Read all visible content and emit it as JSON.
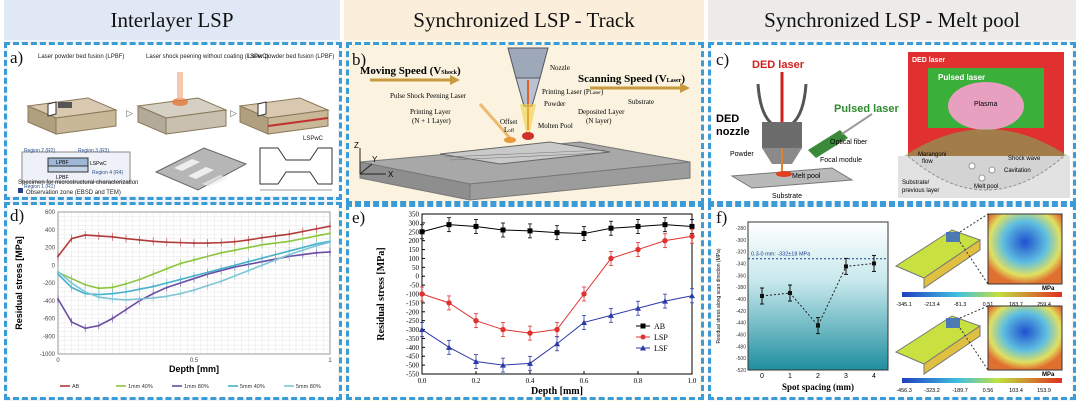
{
  "headers": {
    "col1": "Interlayer LSP",
    "col2": "Synchronized LSP - Track",
    "col3": "Synchronized LSP - Melt pool"
  },
  "panel_a": {
    "letter": "a)",
    "step1": "Laser powder bed fusion (LPBF)",
    "step2": "Laser shock peening without coating (LSPwC)",
    "step3": "Laser powder bed fusion (LPBF)",
    "lspwc_tag": "LSPwC",
    "regions": [
      "Region 2 (R2)",
      "Region 3 (R3)",
      "Region 1 (R1)",
      "Region 4 (R4)"
    ],
    "layers": [
      "LPBF",
      "LSPwC",
      "LPBF"
    ],
    "specimen_caption": "Specimen for microstructural characterization",
    "observation": "Observation zone (EBSD and TEM)"
  },
  "panel_b": {
    "letter": "b)",
    "moving_speed": "Moving Speed (V",
    "moving_sub": "Shock",
    "scanning_speed": "Scanning Speed (V",
    "scanning_sub": "Laser",
    "labels": {
      "nozzle": "Nozzle",
      "printing_laser": "Printing Laser (P",
      "printing_laser_sub": "Laser",
      "powder": "Powder",
      "pulse_laser": "Pulse Shock Peening Laser",
      "printing_layer": "Printing Layer",
      "printing_layer2": "(N + 1 Layer)",
      "offset": "Offset",
      "offset_sym": "L",
      "offset_sub": "off",
      "molten_pool": "Molten Pool",
      "deposited_layer": "Deposited Layer",
      "deposited_layer2": "(N layer)",
      "substrate": "Substrate",
      "axis_x": "X",
      "axis_y": "Y",
      "axis_z": "Z"
    }
  },
  "panel_c": {
    "letter": "c)",
    "ded_laser": "DED laser",
    "ded_nozzle1": "DED",
    "ded_nozzle2": "nozzle",
    "pulsed_laser": "Pulsed laser",
    "optical_fiber": "Optical fiber",
    "powder": "Powder",
    "focal_module": "Focal module",
    "melt_pool": "Melt pool",
    "substrate": "Substrate",
    "right": {
      "ded_laser": "DED laser",
      "pulsed_laser": "Pulsed laser",
      "plasma": "Plasma",
      "marangoni1": "Marangoni",
      "marangoni2": "flow",
      "shock_wave": "Shock wave",
      "cavitation": "Cavitation",
      "melt_pool": "Melt pool",
      "substrate1": "Substrate/",
      "substrate2": "previous layer"
    }
  },
  "panel_d": {
    "letter": "d)",
    "chart_data": {
      "type": "line",
      "xlabel": "Depth [mm]",
      "ylabel": "Residual stress [MPa]",
      "xlim": [
        0,
        1
      ],
      "ylim": [
        -1000,
        600
      ],
      "xticks": [
        "0",
        "0.5",
        "1"
      ],
      "yticks": [
        "600",
        "400",
        "200",
        "0",
        "-200",
        "-400",
        "-600",
        "-800",
        "-1000"
      ],
      "grid": true,
      "legend": "bottom",
      "x": [
        0,
        0.05,
        0.1,
        0.15,
        0.2,
        0.25,
        0.3,
        0.35,
        0.4,
        0.45,
        0.5,
        0.55,
        0.6,
        0.65,
        0.7,
        0.75,
        0.8,
        0.85,
        0.9,
        0.95,
        1.0
      ],
      "series": [
        {
          "name": "AB",
          "color": "#b23a3a",
          "values": [
            100,
            300,
            340,
            330,
            320,
            300,
            285,
            270,
            260,
            255,
            250,
            250,
            255,
            265,
            285,
            310,
            330,
            350,
            380,
            410,
            440
          ]
        },
        {
          "name": "1mm 40%",
          "color": "#8cc540",
          "values": [
            -80,
            -150,
            -220,
            -260,
            -250,
            -210,
            -160,
            -100,
            -40,
            20,
            60,
            100,
            140,
            170,
            200,
            230,
            250,
            270,
            300,
            330,
            360
          ]
        },
        {
          "name": "1mm 80%",
          "color": "#6a4ca3",
          "values": [
            -380,
            -640,
            -710,
            -680,
            -600,
            -500,
            -400,
            -320,
            -250,
            -200,
            -150,
            -100,
            -60,
            -20,
            10,
            40,
            70,
            100,
            120,
            140,
            150
          ]
        },
        {
          "name": "5mm 40%",
          "color": "#46b1c9",
          "values": [
            -100,
            -250,
            -320,
            -330,
            -320,
            -300,
            -270,
            -240,
            -200,
            -160,
            -120,
            -80,
            -40,
            0,
            40,
            80,
            120,
            160,
            200,
            240,
            270
          ]
        },
        {
          "name": "5mm 80%",
          "color": "#7fc5d6",
          "values": [
            -70,
            -200,
            -300,
            -360,
            -380,
            -390,
            -380,
            -370,
            -350,
            -320,
            -280,
            -230,
            -180,
            -120,
            -60,
            0,
            60,
            120,
            170,
            220,
            260
          ]
        }
      ]
    }
  },
  "panel_e": {
    "letter": "e)",
    "chart_data": {
      "type": "line",
      "xlabel": "Depth [mm]",
      "ylabel": "Residual stress [MPa]",
      "xlim": [
        0,
        1.0
      ],
      "ylim": [
        -550,
        350
      ],
      "xticks": [
        "0.0",
        "0.2",
        "0.4",
        "0.6",
        "0.8",
        "1.0"
      ],
      "yticks": [
        "350",
        "300",
        "250",
        "200",
        "150",
        "100",
        "50",
        "0",
        "-50",
        "-100",
        "-150",
        "-200",
        "-250",
        "-300",
        "-350",
        "-400",
        "-450",
        "-500",
        "-550"
      ],
      "legend": "right",
      "x": [
        0.0,
        0.1,
        0.2,
        0.3,
        0.4,
        0.5,
        0.6,
        0.7,
        0.8,
        0.9,
        1.0
      ],
      "series": [
        {
          "name": "AB",
          "color": "#000000",
          "marker": "square",
          "values": [
            250,
            290,
            280,
            260,
            255,
            245,
            240,
            270,
            280,
            290,
            280
          ]
        },
        {
          "name": "LSP",
          "color": "#e03030",
          "marker": "circle",
          "values": [
            -100,
            -150,
            -250,
            -300,
            -320,
            -300,
            -100,
            100,
            150,
            200,
            225
          ]
        },
        {
          "name": "LSF",
          "color": "#2c3aa8",
          "marker": "triangle",
          "values": [
            -300,
            -400,
            -480,
            -500,
            -490,
            -380,
            -260,
            -220,
            -180,
            -140,
            -110
          ]
        }
      ]
    }
  },
  "panel_f": {
    "letter": "f)",
    "chart_data": {
      "type": "scatter",
      "xlabel": "Spot spacing (mm)",
      "ylabel": "Residual stress along scan direction (MPa)",
      "xlim": [
        -0.5,
        4.5
      ],
      "ylim": [
        -520,
        -270
      ],
      "xticks": [
        "0",
        "1",
        "2",
        "3",
        "4"
      ],
      "yticks": [
        "-280",
        "-300",
        "-320",
        "-340",
        "-360",
        "-380",
        "-400",
        "-420",
        "-440",
        "-460",
        "-480",
        "-500",
        "-520"
      ],
      "annotation": "0.3-0 mm: -332±18 MPa",
      "ref_line": -332,
      "x": [
        0,
        1,
        2,
        3,
        4
      ],
      "values": [
        -395,
        -390,
        -445,
        -345,
        -340
      ]
    },
    "scale_top": [
      "-345.1",
      "-213.4",
      "-81.3",
      "0.51",
      "183.7",
      "259.4"
    ],
    "scale_top_unit": "MPa",
    "scale_bottom": [
      "-456.3",
      "-323.2",
      "-189.7",
      "0.56",
      "103.4",
      "153.9"
    ],
    "scale_bottom_unit": "MPa"
  },
  "colors": {
    "dash_border": "#3b9bd6",
    "header1_bg": "#dfe8f4",
    "header2_bg": "#fbeeda",
    "header3_bg": "#ecebea"
  }
}
